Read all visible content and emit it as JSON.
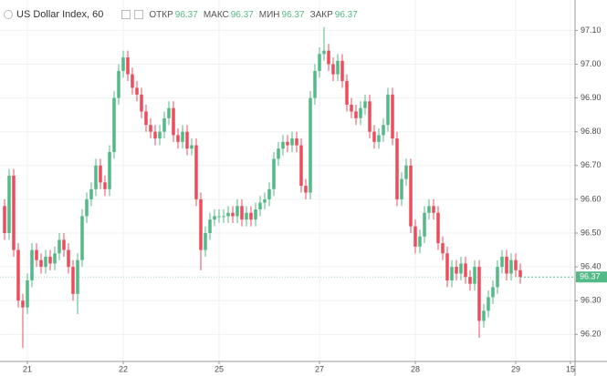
{
  "chart_data": {
    "type": "candlestick",
    "title": "US Dollar Index, 60",
    "legend_values": [
      {
        "label": "ОТКР",
        "value": "96.37"
      },
      {
        "label": "МАКС",
        "value": "96.37"
      },
      {
        "label": "МИН",
        "value": "96.37"
      },
      {
        "label": "ЗАКР",
        "value": "96.37"
      }
    ],
    "up_color": "#53b987",
    "down_color": "#eb4d5c",
    "grid": true,
    "xlim": [
      -1,
      125
    ],
    "xticks": [
      {
        "value": 5,
        "label": "21"
      },
      {
        "value": 26,
        "label": "22"
      },
      {
        "value": 47,
        "label": "25"
      },
      {
        "value": 69,
        "label": "27"
      },
      {
        "value": 90,
        "label": "28"
      },
      {
        "value": 112,
        "label": "29"
      },
      {
        "value": 124,
        "label": "15"
      }
    ],
    "ylim": [
      96.12,
      97.19
    ],
    "yticks": [
      {
        "value": 96.2,
        "label": "96.20"
      },
      {
        "value": 96.3,
        "label": "96.30"
      },
      {
        "value": 96.4,
        "label": "96.40"
      },
      {
        "value": 96.5,
        "label": "96.50"
      },
      {
        "value": 96.6,
        "label": "96.60"
      },
      {
        "value": 96.7,
        "label": "96.70"
      },
      {
        "value": 96.8,
        "label": "96.80"
      },
      {
        "value": 96.9,
        "label": "96.90"
      },
      {
        "value": 97.0,
        "label": "97.00"
      },
      {
        "value": 97.1,
        "label": "97.10"
      }
    ],
    "last_value": {
      "value": 96.37,
      "label": "96.37"
    },
    "open": [
      96.58,
      96.5,
      96.67,
      96.45,
      96.3,
      96.28,
      96.36,
      96.45,
      96.42,
      96.4,
      96.43,
      96.41,
      96.44,
      96.48,
      96.45,
      96.4,
      96.32,
      96.42,
      96.55,
      96.6,
      96.63,
      96.7,
      96.65,
      96.63,
      96.74,
      96.9,
      96.98,
      97.02,
      96.97,
      96.93,
      96.91,
      96.86,
      96.82,
      96.8,
      96.78,
      96.8,
      96.84,
      96.87,
      96.79,
      96.77,
      96.8,
      96.75,
      96.76,
      96.6,
      96.45,
      96.5,
      96.54,
      96.55,
      96.55,
      96.55,
      96.56,
      96.55,
      96.58,
      96.54,
      96.56,
      96.54,
      96.57,
      96.59,
      96.6,
      96.63,
      96.72,
      96.75,
      96.77,
      96.76,
      96.78,
      96.76,
      96.64,
      96.62,
      96.9,
      96.98,
      97.03,
      97.04,
      97.0,
      96.97,
      97.01,
      96.95,
      96.88,
      96.86,
      96.84,
      96.87,
      96.89,
      96.8,
      96.77,
      96.79,
      96.82,
      96.91,
      96.78,
      96.6,
      96.66,
      96.7,
      96.52,
      96.46,
      96.49,
      96.56,
      96.58,
      96.56,
      96.47,
      96.44,
      96.36,
      96.4,
      96.38,
      96.41,
      96.37,
      96.35,
      96.4,
      96.24,
      96.27,
      96.31,
      96.34,
      96.4,
      96.43,
      96.38,
      96.42,
      96.39
    ],
    "high": [
      96.6,
      96.69,
      96.69,
      96.47,
      96.32,
      96.38,
      96.47,
      96.47,
      96.44,
      96.45,
      96.45,
      96.46,
      96.5,
      96.5,
      96.47,
      96.42,
      96.44,
      96.57,
      96.62,
      96.65,
      96.72,
      96.72,
      96.67,
      96.76,
      96.92,
      97.0,
      97.04,
      97.04,
      96.99,
      96.95,
      96.93,
      96.88,
      96.84,
      96.82,
      96.82,
      96.86,
      96.89,
      96.89,
      96.81,
      96.82,
      96.82,
      96.78,
      96.78,
      96.62,
      96.52,
      96.56,
      96.57,
      96.57,
      96.57,
      96.58,
      96.58,
      96.6,
      96.6,
      96.58,
      96.58,
      96.59,
      96.61,
      96.62,
      96.65,
      96.74,
      96.77,
      96.79,
      96.79,
      96.8,
      96.8,
      96.78,
      96.66,
      96.92,
      97.0,
      97.05,
      97.11,
      97.06,
      97.02,
      97.03,
      97.03,
      96.97,
      96.9,
      96.88,
      96.89,
      96.91,
      96.91,
      96.82,
      96.81,
      96.84,
      96.93,
      96.93,
      96.8,
      96.68,
      96.72,
      96.72,
      96.54,
      96.51,
      96.58,
      96.6,
      96.6,
      96.58,
      96.49,
      96.46,
      96.42,
      96.42,
      96.43,
      96.43,
      96.39,
      96.42,
      96.42,
      96.29,
      96.33,
      96.36,
      96.42,
      96.45,
      96.45,
      96.44,
      96.44,
      96.41
    ],
    "low": [
      96.48,
      96.48,
      96.43,
      96.28,
      96.16,
      96.26,
      96.34,
      96.4,
      96.38,
      96.38,
      96.39,
      96.39,
      96.42,
      96.43,
      96.38,
      96.3,
      96.26,
      96.4,
      96.53,
      96.58,
      96.61,
      96.63,
      96.61,
      96.61,
      96.72,
      96.88,
      96.96,
      96.95,
      96.91,
      96.89,
      96.84,
      96.8,
      96.78,
      96.76,
      96.76,
      96.78,
      96.82,
      96.77,
      96.75,
      96.75,
      96.73,
      96.73,
      96.58,
      96.39,
      96.43,
      96.48,
      96.52,
      96.53,
      96.53,
      96.53,
      96.53,
      96.53,
      96.52,
      96.52,
      96.52,
      96.52,
      96.55,
      96.57,
      96.58,
      96.61,
      96.7,
      96.73,
      96.74,
      96.74,
      96.74,
      96.62,
      96.6,
      96.6,
      96.88,
      96.96,
      97.01,
      96.98,
      96.95,
      96.95,
      96.93,
      96.86,
      96.84,
      96.82,
      96.82,
      96.85,
      96.78,
      96.75,
      96.75,
      96.77,
      96.8,
      96.76,
      96.58,
      96.58,
      96.64,
      96.5,
      96.44,
      96.44,
      96.47,
      96.54,
      96.54,
      96.45,
      96.42,
      96.34,
      96.34,
      96.36,
      96.36,
      96.35,
      96.33,
      96.33,
      96.19,
      96.22,
      96.25,
      96.29,
      96.32,
      96.38,
      96.36,
      96.36,
      96.37,
      96.35
    ],
    "close": [
      96.5,
      96.67,
      96.45,
      96.3,
      96.28,
      96.36,
      96.45,
      96.42,
      96.4,
      96.43,
      96.41,
      96.44,
      96.48,
      96.45,
      96.4,
      96.32,
      96.42,
      96.55,
      96.6,
      96.63,
      96.7,
      96.65,
      96.63,
      96.74,
      96.9,
      96.98,
      97.02,
      96.97,
      96.93,
      96.91,
      96.86,
      96.82,
      96.8,
      96.78,
      96.8,
      96.84,
      96.87,
      96.79,
      96.77,
      96.8,
      96.75,
      96.76,
      96.6,
      96.45,
      96.5,
      96.54,
      96.55,
      96.55,
      96.55,
      96.56,
      96.55,
      96.58,
      96.54,
      96.56,
      96.54,
      96.57,
      96.59,
      96.6,
      96.63,
      96.72,
      96.75,
      96.77,
      96.76,
      96.78,
      96.76,
      96.64,
      96.62,
      96.9,
      96.98,
      97.03,
      97.04,
      97.0,
      96.97,
      97.01,
      96.95,
      96.88,
      96.86,
      96.84,
      96.87,
      96.89,
      96.8,
      96.77,
      96.79,
      96.82,
      96.91,
      96.78,
      96.6,
      96.66,
      96.7,
      96.52,
      96.46,
      96.49,
      96.56,
      96.58,
      96.56,
      96.47,
      96.44,
      96.36,
      96.4,
      96.38,
      96.41,
      96.37,
      96.35,
      96.4,
      96.24,
      96.27,
      96.31,
      96.34,
      96.4,
      96.43,
      96.38,
      96.42,
      96.39,
      96.37
    ]
  }
}
